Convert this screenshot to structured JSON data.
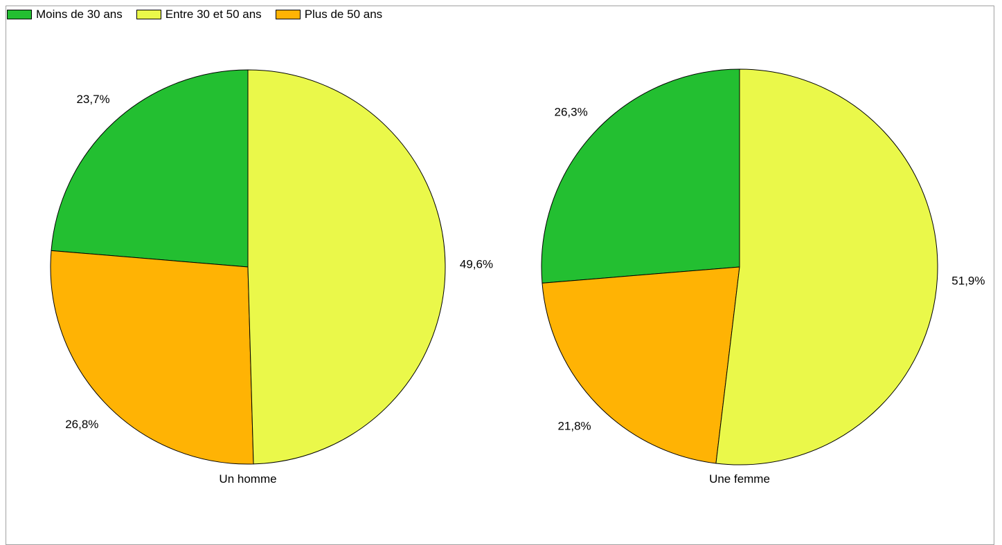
{
  "chart_data": {
    "type": "pie",
    "legend": {
      "placement": "top-left",
      "entries": [
        "Moins de 30 ans",
        "Entre 30 et 50 ans",
        "Plus de 50 ans"
      ]
    },
    "colors": [
      "#23bf31",
      "#eaf84a",
      "#ffb304"
    ],
    "charts": [
      {
        "label": "Un homme",
        "slices": [
          {
            "name": "Moins de 30 ans",
            "value": 23.7,
            "label": "23,7%"
          },
          {
            "name": "Plus de 50 ans",
            "value": 26.8,
            "label": "26,8%"
          },
          {
            "name": "Entre 30 et 50 ans",
            "value": 49.6,
            "label": "49,6%"
          }
        ]
      },
      {
        "label": "Une femme",
        "slices": [
          {
            "name": "Moins de 30 ans",
            "value": 26.3,
            "label": "26,3%"
          },
          {
            "name": "Plus de 50 ans",
            "value": 21.8,
            "label": "21,8%"
          },
          {
            "name": "Entre 30 et 50 ans",
            "value": 51.9,
            "label": "51,9%"
          }
        ]
      }
    ]
  }
}
